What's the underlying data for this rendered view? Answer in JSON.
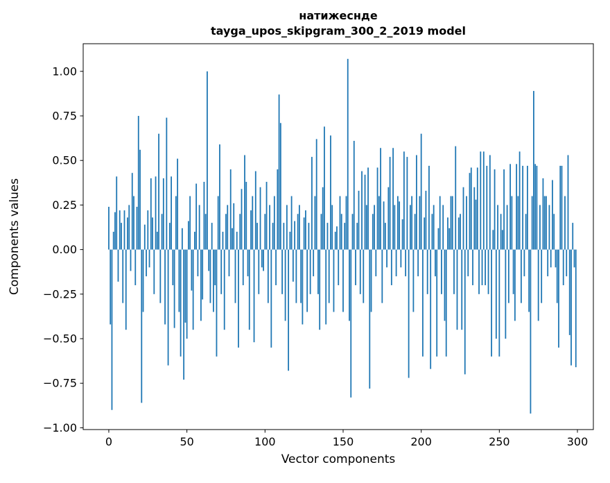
{
  "chart_data": {
    "type": "bar",
    "title": "натижеснде",
    "subtitle": "tayga_upos_skipgram_300_2_2019 model",
    "xlabel": "Vector components",
    "ylabel": "Components values",
    "bar_color": "#1f77b4",
    "n_components": 300,
    "xlim": [
      -16.4,
      310.2
    ],
    "ylim": [
      -1.01,
      1.155
    ],
    "x_ticks": [
      0,
      50,
      100,
      150,
      200,
      250,
      300
    ],
    "x_tick_labels": [
      "0",
      "50",
      "100",
      "150",
      "200",
      "250",
      "300"
    ],
    "y_ticks": [
      1.0,
      0.75,
      0.5,
      0.25,
      0.0,
      -0.25,
      -0.5,
      -0.75,
      -1.0
    ],
    "y_tick_labels": [
      "1.00",
      "0.75",
      "0.50",
      "0.25",
      "0.00",
      "−0.25",
      "−0.50",
      "−0.75",
      "−1.00"
    ],
    "legend": "none",
    "grid": false,
    "values": [
      0.24,
      -0.42,
      -0.9,
      0.1,
      0.21,
      0.41,
      -0.18,
      0.22,
      0.15,
      -0.3,
      0.22,
      -0.45,
      0.18,
      0.25,
      -0.12,
      0.43,
      0.3,
      -0.2,
      0.24,
      0.75,
      0.56,
      -0.86,
      -0.35,
      0.14,
      -0.15,
      0.22,
      -0.1,
      0.4,
      0.18,
      -0.25,
      0.41,
      0.1,
      0.65,
      -0.3,
      0.2,
      0.4,
      -0.42,
      0.74,
      -0.65,
      0.15,
      0.41,
      -0.2,
      -0.44,
      0.3,
      0.51,
      -0.35,
      -0.6,
      0.12,
      -0.73,
      -0.41,
      -0.5,
      0.16,
      0.3,
      -0.23,
      -0.45,
      0.1,
      0.37,
      -0.15,
      0.25,
      -0.4,
      -0.28,
      0.38,
      0.2,
      1.0,
      -0.12,
      -0.3,
      0.15,
      -0.35,
      -0.2,
      -0.6,
      0.3,
      0.59,
      -0.25,
      0.1,
      -0.45,
      0.2,
      0.25,
      -0.15,
      0.45,
      0.12,
      0.26,
      -0.3,
      0.1,
      -0.55,
      0.2,
      0.34,
      -0.2,
      0.53,
      0.38,
      -0.15,
      -0.45,
      0.22,
      0.3,
      -0.52,
      0.44,
      0.15,
      -0.25,
      0.35,
      -0.1,
      -0.12,
      0.2,
      0.38,
      -0.3,
      0.25,
      -0.55,
      0.15,
      0.3,
      -0.2,
      0.45,
      0.87,
      0.71,
      -0.25,
      0.15,
      -0.4,
      0.25,
      -0.68,
      0.1,
      0.3,
      -0.18,
      0.16,
      -0.3,
      0.2,
      0.25,
      -0.3,
      -0.42,
      0.18,
      0.22,
      -0.35,
      0.15,
      -0.25,
      0.52,
      -0.15,
      0.3,
      0.62,
      -0.25,
      -0.45,
      0.2,
      0.35,
      0.69,
      -0.42,
      0.15,
      -0.3,
      0.64,
      0.25,
      -0.35,
      0.1,
      0.13,
      -0.2,
      0.3,
      0.2,
      -0.35,
      0.15,
      0.3,
      1.07,
      -0.4,
      -0.83,
      0.2,
      0.61,
      -0.2,
      0.15,
      0.33,
      -0.25,
      0.44,
      -0.3,
      0.42,
      0.25,
      0.46,
      -0.78,
      -0.35,
      0.2,
      0.25,
      -0.15,
      0.46,
      0.3,
      0.57,
      -0.3,
      0.27,
      0.15,
      -0.1,
      0.35,
      0.52,
      -0.2,
      0.57,
      0.25,
      -0.15,
      0.3,
      0.27,
      -0.1,
      0.17,
      0.55,
      -0.15,
      0.52,
      -0.72,
      0.25,
      0.3,
      -0.35,
      0.2,
      0.53,
      -0.15,
      0.3,
      0.65,
      -0.6,
      0.18,
      0.33,
      -0.25,
      0.47,
      -0.67,
      0.2,
      0.25,
      -0.15,
      -0.6,
      0.12,
      0.3,
      -0.25,
      0.25,
      -0.4,
      -0.6,
      0.18,
      0.12,
      0.3,
      0.3,
      -0.25,
      0.58,
      -0.45,
      0.18,
      0.2,
      -0.45,
      0.35,
      -0.7,
      0.3,
      -0.15,
      0.43,
      0.46,
      -0.2,
      0.35,
      0.28,
      0.46,
      -0.25,
      0.55,
      -0.2,
      0.55,
      -0.2,
      0.47,
      -0.25,
      0.53,
      -0.6,
      0.11,
      0.45,
      -0.5,
      0.25,
      -0.6,
      0.2,
      0.11,
      0.45,
      -0.5,
      0.25,
      -0.3,
      0.48,
      0.3,
      -0.25,
      -0.4,
      0.48,
      0.3,
      0.55,
      -0.3,
      0.47,
      -0.15,
      0.2,
      0.47,
      -0.35,
      -0.92,
      0.3,
      0.89,
      0.48,
      0.47,
      -0.4,
      0.25,
      -0.3,
      0.4,
      0.3,
      0.3,
      -0.15,
      0.25,
      -0.1,
      0.39,
      0.2,
      -0.1,
      -0.3,
      -0.55,
      0.47,
      0.47,
      -0.2,
      0.3,
      -0.15,
      0.53,
      -0.48,
      -0.65,
      0.15,
      -0.1,
      -0.66
    ]
  }
}
